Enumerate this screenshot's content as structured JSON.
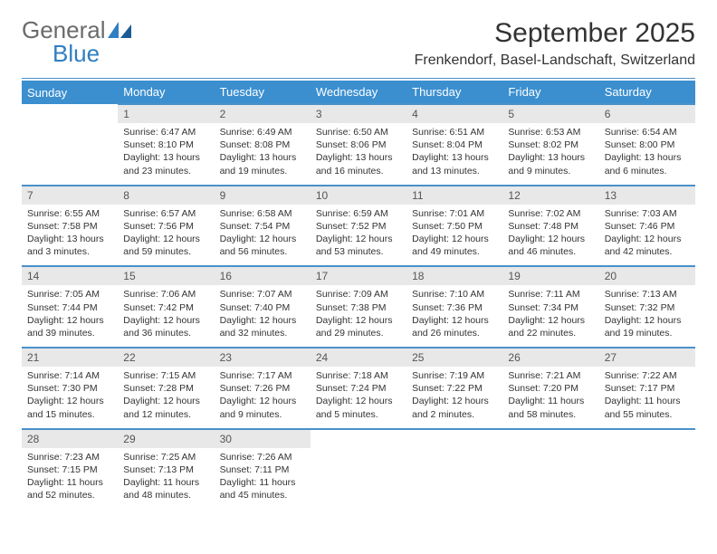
{
  "logo": {
    "general": "General",
    "blue": "Blue"
  },
  "title": "September 2025",
  "subtitle": "Frenkendorf, Basel-Landschaft, Switzerland",
  "colors": {
    "header_bg": "#3b8fcf",
    "header_text": "#ffffff",
    "daynum_bg": "#e8e8e8",
    "row_border": "#4a90c9",
    "logo_gray": "#6b6b6b",
    "logo_blue": "#2f7fc2"
  },
  "weekdays": [
    "Sunday",
    "Monday",
    "Tuesday",
    "Wednesday",
    "Thursday",
    "Friday",
    "Saturday"
  ],
  "weeks": [
    {
      "nums": [
        "",
        "1",
        "2",
        "3",
        "4",
        "5",
        "6"
      ],
      "cells": [
        null,
        {
          "sunrise": "Sunrise: 6:47 AM",
          "sunset": "Sunset: 8:10 PM",
          "daylight": "Daylight: 13 hours and 23 minutes."
        },
        {
          "sunrise": "Sunrise: 6:49 AM",
          "sunset": "Sunset: 8:08 PM",
          "daylight": "Daylight: 13 hours and 19 minutes."
        },
        {
          "sunrise": "Sunrise: 6:50 AM",
          "sunset": "Sunset: 8:06 PM",
          "daylight": "Daylight: 13 hours and 16 minutes."
        },
        {
          "sunrise": "Sunrise: 6:51 AM",
          "sunset": "Sunset: 8:04 PM",
          "daylight": "Daylight: 13 hours and 13 minutes."
        },
        {
          "sunrise": "Sunrise: 6:53 AM",
          "sunset": "Sunset: 8:02 PM",
          "daylight": "Daylight: 13 hours and 9 minutes."
        },
        {
          "sunrise": "Sunrise: 6:54 AM",
          "sunset": "Sunset: 8:00 PM",
          "daylight": "Daylight: 13 hours and 6 minutes."
        }
      ]
    },
    {
      "nums": [
        "7",
        "8",
        "9",
        "10",
        "11",
        "12",
        "13"
      ],
      "cells": [
        {
          "sunrise": "Sunrise: 6:55 AM",
          "sunset": "Sunset: 7:58 PM",
          "daylight": "Daylight: 13 hours and 3 minutes."
        },
        {
          "sunrise": "Sunrise: 6:57 AM",
          "sunset": "Sunset: 7:56 PM",
          "daylight": "Daylight: 12 hours and 59 minutes."
        },
        {
          "sunrise": "Sunrise: 6:58 AM",
          "sunset": "Sunset: 7:54 PM",
          "daylight": "Daylight: 12 hours and 56 minutes."
        },
        {
          "sunrise": "Sunrise: 6:59 AM",
          "sunset": "Sunset: 7:52 PM",
          "daylight": "Daylight: 12 hours and 53 minutes."
        },
        {
          "sunrise": "Sunrise: 7:01 AM",
          "sunset": "Sunset: 7:50 PM",
          "daylight": "Daylight: 12 hours and 49 minutes."
        },
        {
          "sunrise": "Sunrise: 7:02 AM",
          "sunset": "Sunset: 7:48 PM",
          "daylight": "Daylight: 12 hours and 46 minutes."
        },
        {
          "sunrise": "Sunrise: 7:03 AM",
          "sunset": "Sunset: 7:46 PM",
          "daylight": "Daylight: 12 hours and 42 minutes."
        }
      ]
    },
    {
      "nums": [
        "14",
        "15",
        "16",
        "17",
        "18",
        "19",
        "20"
      ],
      "cells": [
        {
          "sunrise": "Sunrise: 7:05 AM",
          "sunset": "Sunset: 7:44 PM",
          "daylight": "Daylight: 12 hours and 39 minutes."
        },
        {
          "sunrise": "Sunrise: 7:06 AM",
          "sunset": "Sunset: 7:42 PM",
          "daylight": "Daylight: 12 hours and 36 minutes."
        },
        {
          "sunrise": "Sunrise: 7:07 AM",
          "sunset": "Sunset: 7:40 PM",
          "daylight": "Daylight: 12 hours and 32 minutes."
        },
        {
          "sunrise": "Sunrise: 7:09 AM",
          "sunset": "Sunset: 7:38 PM",
          "daylight": "Daylight: 12 hours and 29 minutes."
        },
        {
          "sunrise": "Sunrise: 7:10 AM",
          "sunset": "Sunset: 7:36 PM",
          "daylight": "Daylight: 12 hours and 26 minutes."
        },
        {
          "sunrise": "Sunrise: 7:11 AM",
          "sunset": "Sunset: 7:34 PM",
          "daylight": "Daylight: 12 hours and 22 minutes."
        },
        {
          "sunrise": "Sunrise: 7:13 AM",
          "sunset": "Sunset: 7:32 PM",
          "daylight": "Daylight: 12 hours and 19 minutes."
        }
      ]
    },
    {
      "nums": [
        "21",
        "22",
        "23",
        "24",
        "25",
        "26",
        "27"
      ],
      "cells": [
        {
          "sunrise": "Sunrise: 7:14 AM",
          "sunset": "Sunset: 7:30 PM",
          "daylight": "Daylight: 12 hours and 15 minutes."
        },
        {
          "sunrise": "Sunrise: 7:15 AM",
          "sunset": "Sunset: 7:28 PM",
          "daylight": "Daylight: 12 hours and 12 minutes."
        },
        {
          "sunrise": "Sunrise: 7:17 AM",
          "sunset": "Sunset: 7:26 PM",
          "daylight": "Daylight: 12 hours and 9 minutes."
        },
        {
          "sunrise": "Sunrise: 7:18 AM",
          "sunset": "Sunset: 7:24 PM",
          "daylight": "Daylight: 12 hours and 5 minutes."
        },
        {
          "sunrise": "Sunrise: 7:19 AM",
          "sunset": "Sunset: 7:22 PM",
          "daylight": "Daylight: 12 hours and 2 minutes."
        },
        {
          "sunrise": "Sunrise: 7:21 AM",
          "sunset": "Sunset: 7:20 PM",
          "daylight": "Daylight: 11 hours and 58 minutes."
        },
        {
          "sunrise": "Sunrise: 7:22 AM",
          "sunset": "Sunset: 7:17 PM",
          "daylight": "Daylight: 11 hours and 55 minutes."
        }
      ]
    },
    {
      "nums": [
        "28",
        "29",
        "30",
        "",
        "",
        "",
        ""
      ],
      "cells": [
        {
          "sunrise": "Sunrise: 7:23 AM",
          "sunset": "Sunset: 7:15 PM",
          "daylight": "Daylight: 11 hours and 52 minutes."
        },
        {
          "sunrise": "Sunrise: 7:25 AM",
          "sunset": "Sunset: 7:13 PM",
          "daylight": "Daylight: 11 hours and 48 minutes."
        },
        {
          "sunrise": "Sunrise: 7:26 AM",
          "sunset": "Sunset: 7:11 PM",
          "daylight": "Daylight: 11 hours and 45 minutes."
        },
        null,
        null,
        null,
        null
      ]
    }
  ]
}
